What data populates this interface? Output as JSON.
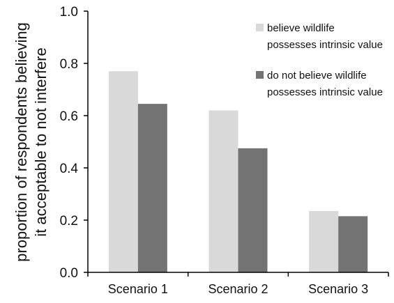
{
  "chart_data": {
    "type": "bar",
    "categories": [
      "Scenario 1",
      "Scenario 2",
      "Scenario 3"
    ],
    "series": [
      {
        "name": "believe wildlife possesses intrinsic value",
        "values": [
          0.77,
          0.62,
          0.235
        ],
        "color": "#d9d9d9"
      },
      {
        "name": "do not believe wildlife possesses intrinsic value",
        "values": [
          0.645,
          0.475,
          0.215
        ],
        "color": "#737373"
      }
    ],
    "title": "",
    "xlabel": "",
    "ylabel_lines": [
      "proportion of respondents believing",
      "it acceptable to not interfere"
    ],
    "ylim": [
      0,
      1.0
    ],
    "yticks": [
      "0.0",
      "0.2",
      "0.4",
      "0.6",
      "0.8",
      "1.0"
    ],
    "legend": {
      "placement": "top-right",
      "entries": [
        {
          "lines": [
            "believe wildlife",
            "possesses intrinsic value"
          ]
        },
        {
          "lines": [
            "do not believe wildlife",
            "possesses intrinsic value"
          ]
        }
      ]
    },
    "grid": false
  }
}
